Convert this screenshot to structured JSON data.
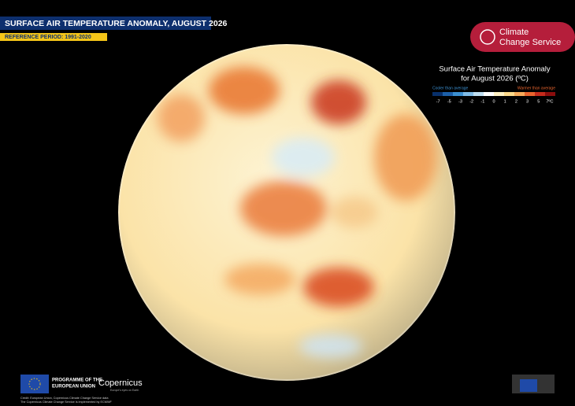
{
  "header": {
    "title": "SURFACE AIR TEMPERATURE ANOMALY, AUGUST 2026",
    "subtitle": "REFERENCE PERIOD: 1991-2020"
  },
  "logo": {
    "line1": "Climate",
    "line2": "Change Service"
  },
  "legend": {
    "title_line1": "Surface Air Temperature Anomaly",
    "title_line2": "for August 2026 (ºC)",
    "cooler": "Cooler than average",
    "warmer": "Warmer than average",
    "ticks": [
      "-7",
      "-5",
      "-3",
      "-2",
      "-1",
      "0",
      "1",
      "2",
      "3",
      "5",
      "7ºC"
    ],
    "colors": [
      "#08306b",
      "#1c5fa8",
      "#3b8fd0",
      "#7fbbe6",
      "#bfdff2",
      "#ffffff",
      "#fdf0c2",
      "#fbd98a",
      "#f6a95a",
      "#e8642e",
      "#c42b1c",
      "#8b0d0d"
    ]
  },
  "footer": {
    "eu_line1": "PROGRAMME OF THE",
    "eu_line2": "EUROPEAN UNION",
    "copernicus": "Copernicus",
    "copernicus_tag": "Europe's eyes on Earth",
    "credit1": "Credit: European Union, Copernicus Climate Change Service data",
    "credit2": "The Copernicus Climate Change Service is implemented by ECMWF"
  }
}
